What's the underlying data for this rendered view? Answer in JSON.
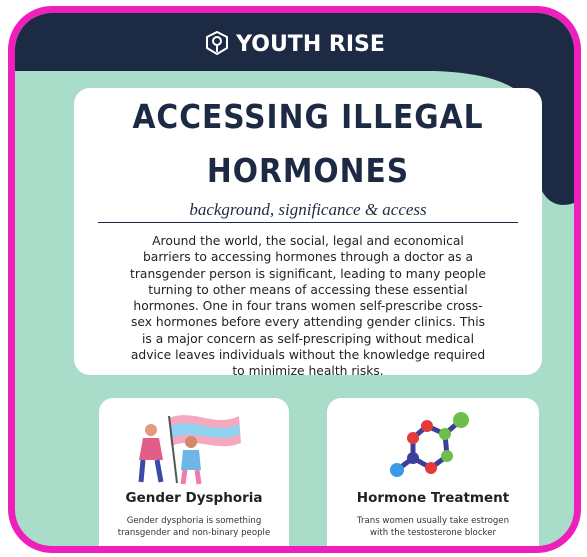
{
  "logo": {
    "text": "YOUTH RISE"
  },
  "header": {
    "title_lines": [
      "ACCESSING ILLEGAL",
      "HORMONES"
    ],
    "subtitle": "background, significance & access"
  },
  "intro": {
    "lines": [
      "Around the world, the social, legal and economical",
      "barriers to accessing hormones through a doctor as a",
      "transgender person is significant, leading to many people",
      "turning to other means of accessing these essential",
      "hormones. One in four trans women self-prescribe cross-",
      "sex hormones before every attending gender clinics. This",
      "is a major concern as self-prescriping without medical",
      "advice leaves individuals without the knowledge required",
      "to minimize health risks."
    ]
  },
  "cards": [
    {
      "title": "Gender Dysphoria",
      "lines": [
        "Gender dysphoria is something",
        "transgender and non-binary people"
      ]
    },
    {
      "title": "Hormone Treatment",
      "lines": [
        "Trans women usually take estrogen",
        "with the testosterone blocker"
      ]
    }
  ]
}
